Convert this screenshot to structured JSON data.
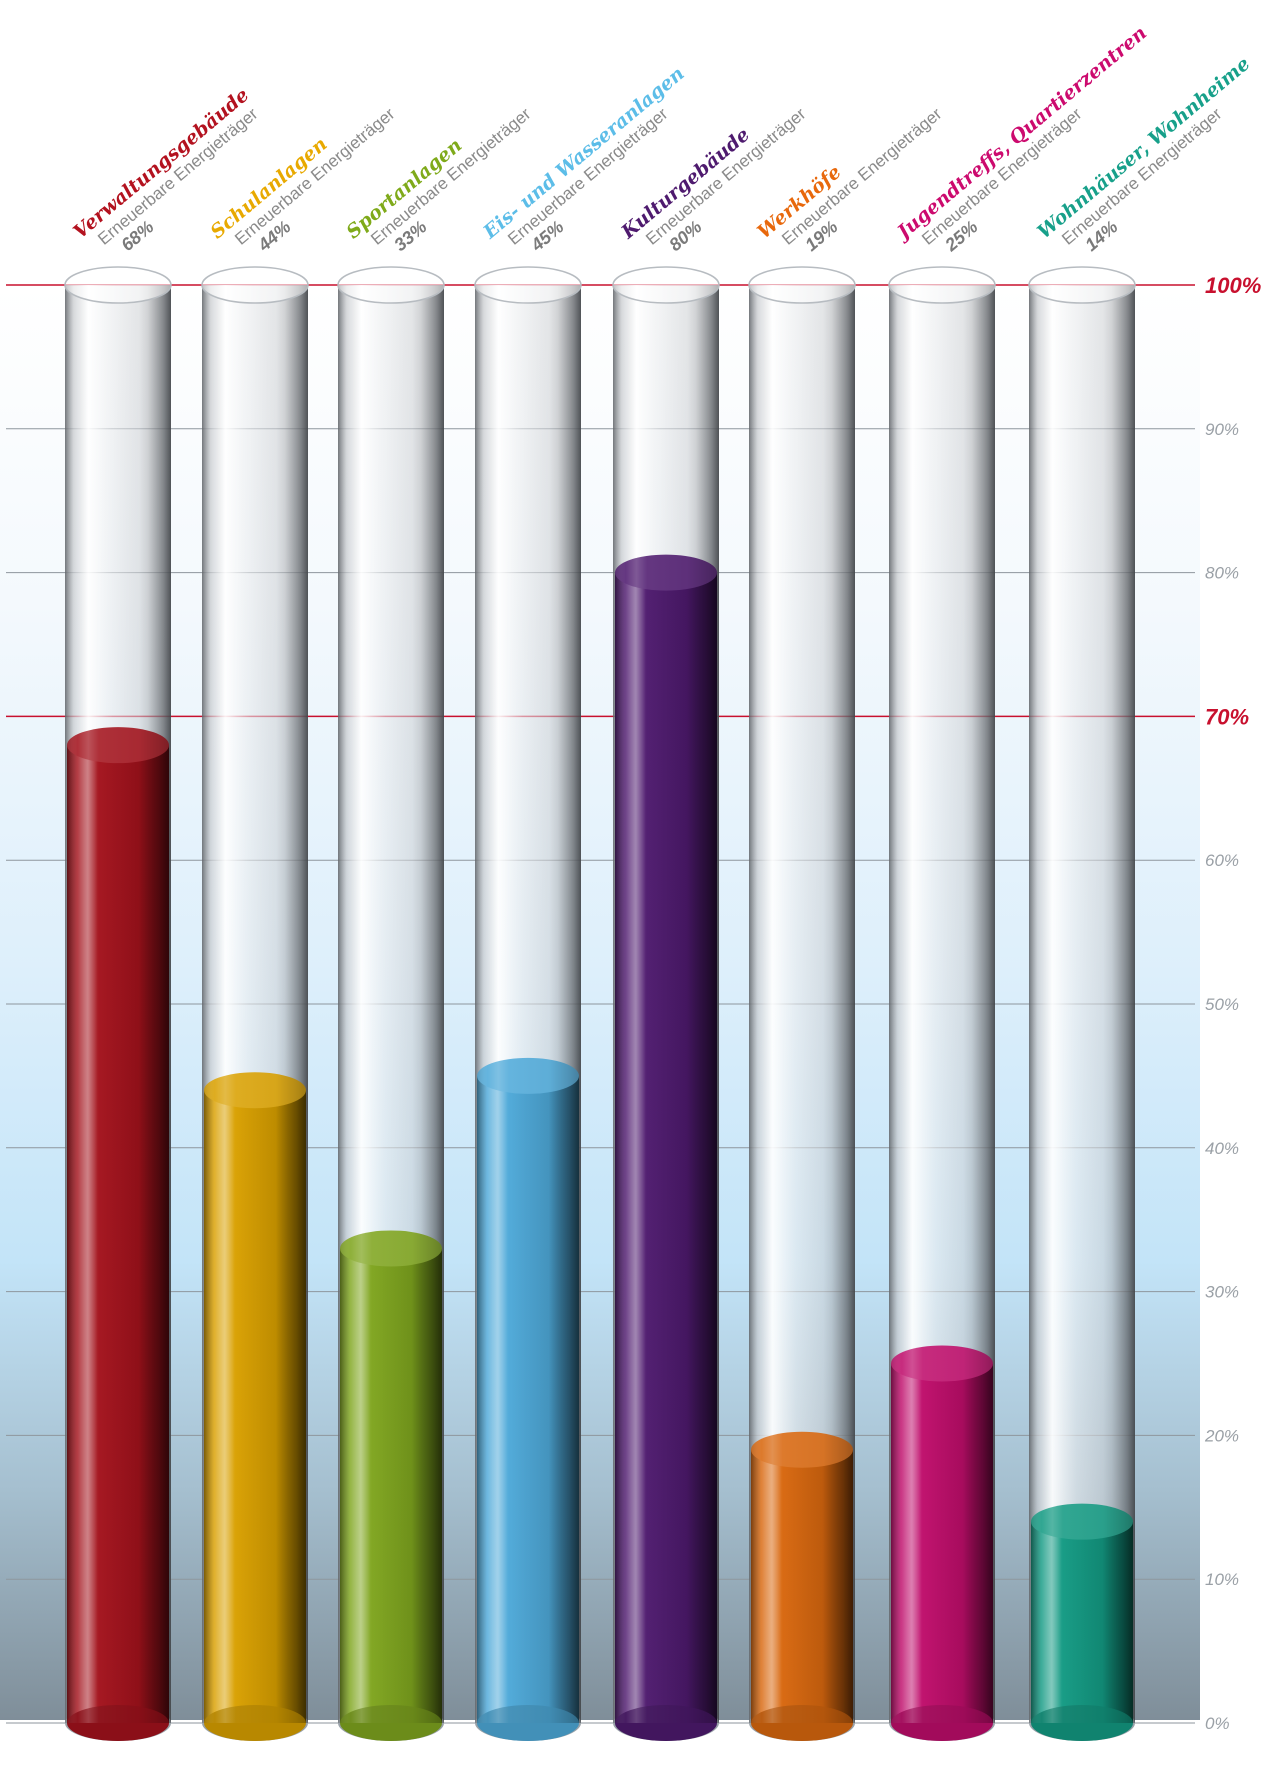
{
  "chart_data": {
    "type": "bar",
    "categories": [
      "Verwaltungsgebäude",
      "Schulanlagen",
      "Sportanlagen",
      "Eis- und Wasseranlagen",
      "Kulturgebäude",
      "Werkhöfe",
      "Jugendtreffs, Quartierzentren",
      "Wohnhäuser, Wohnheime"
    ],
    "subtitle_each": "Erneuerbare Energieträger",
    "values": [
      68,
      44,
      33,
      45,
      80,
      19,
      25,
      14
    ],
    "value_labels": [
      "68%",
      "44%",
      "33%",
      "45%",
      "80%",
      "19%",
      "25%",
      "14%"
    ],
    "colors": [
      "#a3121c",
      "#d9a000",
      "#7fa51e",
      "#4ea9d9",
      "#4e1a6e",
      "#d8670e",
      "#bf0d6b",
      "#139a83"
    ],
    "label_colors": [
      "#b3121f",
      "#e8a900",
      "#7faa1a",
      "#5cbde8",
      "#4e1a6e",
      "#e8680c",
      "#cc0a6e",
      "#17a08a"
    ],
    "ylim": [
      0,
      100
    ],
    "y_ticks": [
      {
        "value": 0,
        "label": "0%"
      },
      {
        "value": 10,
        "label": "10%"
      },
      {
        "value": 20,
        "label": "20%"
      },
      {
        "value": 30,
        "label": "30%"
      },
      {
        "value": 40,
        "label": "40%"
      },
      {
        "value": 50,
        "label": "50%"
      },
      {
        "value": 60,
        "label": "60%"
      },
      {
        "value": 80,
        "label": "80%"
      },
      {
        "value": 90,
        "label": "90%"
      }
    ],
    "reference_lines": [
      {
        "value": 100,
        "label": "100%",
        "color": "#c8102e"
      },
      {
        "value": 70,
        "label": "70%",
        "color": "#c8102e"
      }
    ],
    "grid": true,
    "legend": "none"
  }
}
